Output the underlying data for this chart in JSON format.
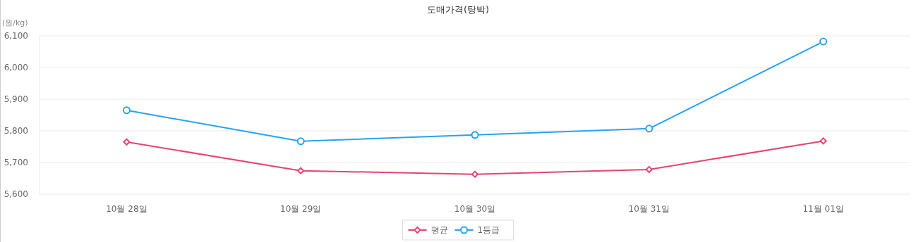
{
  "chart_data": {
    "type": "line",
    "title": "도매가격(탕박)",
    "ylabel": "(원/kg)",
    "categories": [
      "10월 28일",
      "10월 29일",
      "10월 30일",
      "10월 31일",
      "11월 01일"
    ],
    "series": [
      {
        "name": "평균",
        "color": "#e8436f",
        "marker": "diamond",
        "values": [
          5765,
          5674,
          5663,
          5678,
          5768
        ]
      },
      {
        "name": "1등급",
        "color": "#27a3f0",
        "marker": "circle",
        "values": [
          5865,
          5767,
          5787,
          5807,
          6082
        ]
      }
    ],
    "ylim": [
      5600,
      6100
    ],
    "yticks": [
      {
        "value": 5600,
        "label": "5,600"
      },
      {
        "value": 5700,
        "label": "5,700"
      },
      {
        "value": 5800,
        "label": "5,800"
      },
      {
        "value": 5900,
        "label": "5,900"
      },
      {
        "value": 6000,
        "label": "6,000"
      },
      {
        "value": 6100,
        "label": "6,100"
      }
    ],
    "grid": "y",
    "legend": "bottom",
    "line_style": "solid"
  }
}
